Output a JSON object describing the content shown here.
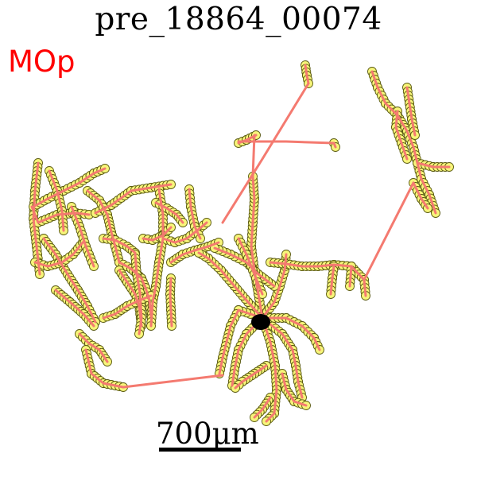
{
  "title": "pre_18864_00074",
  "region_label": "MOp",
  "scale_bar_label": "700μm",
  "colors": {
    "region_label": "#ff0000",
    "edge": "#f47a70",
    "node_fill": "#f7f57a",
    "node_stroke": "#5a5a10",
    "soma": "#000000"
  },
  "icons": [
    "neuron-morphology"
  ]
}
